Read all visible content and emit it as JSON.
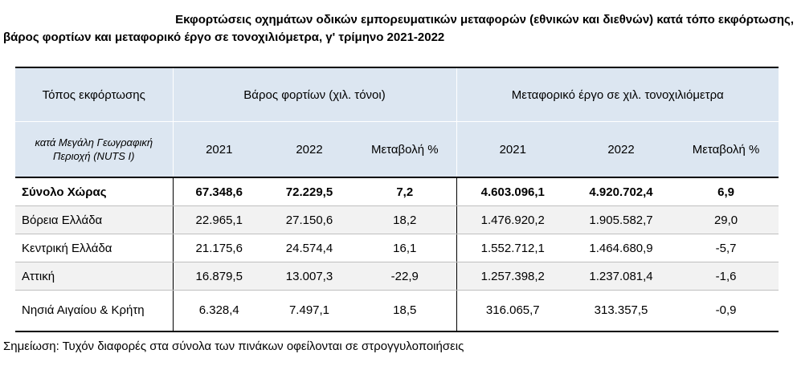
{
  "title": {
    "line1": "Εκφορτώσεις οχημάτων οδικών εμπορευματικών μεταφορών (εθνικών και διεθνών) κατά τόπο εκφόρτωσης,",
    "line2": "βάρος φορτίων και μεταφορικό έργο σε τονοχιλιόμετρα, γ' τρίμηνο 2021-2022"
  },
  "table": {
    "header": {
      "col1": "Τόπος εκφόρτωσης",
      "group_weight": "Βάρος φορτίων (χιλ. τόνοι)",
      "group_work": "Μεταφορικό έργο σε χιλ. τονοχιλιόμετρα",
      "region_label": "κατά Μεγάλη Γεωγραφική Περιοχή (NUTS I)",
      "y2021": "2021",
      "y2022": "2022",
      "change": "Μεταβολή %"
    },
    "rows": [
      {
        "name": "Σύνολο Χώρας",
        "w2021": "67.348,6",
        "w2022": "72.229,5",
        "wchg": "7,2",
        "t2021": "4.603.096,1",
        "t2022": "4.920.702,4",
        "tchg": "6,9"
      },
      {
        "name": "Βόρεια Ελλάδα",
        "w2021": "22.965,1",
        "w2022": "27.150,6",
        "wchg": "18,2",
        "t2021": "1.476.920,2",
        "t2022": "1.905.582,7",
        "tchg": "29,0"
      },
      {
        "name": "Κεντρική Ελλάδα",
        "w2021": "21.175,6",
        "w2022": "24.574,4",
        "wchg": "16,1",
        "t2021": "1.552.712,1",
        "t2022": "1.464.680,9",
        "tchg": "-5,7"
      },
      {
        "name": "Αττική",
        "w2021": "16.879,5",
        "w2022": "13.007,3",
        "wchg": "-22,9",
        "t2021": "1.257.398,2",
        "t2022": "1.237.081,4",
        "tchg": "-1,6"
      },
      {
        "name": "Νησιά Αιγαίου & Κρήτη",
        "w2021": "6.328,4",
        "w2022": "7.497,1",
        "wchg": "18,5",
        "t2021": "316.065,7",
        "t2022": "313.357,5",
        "tchg": "-0,9"
      }
    ]
  },
  "note": "Σημείωση: Τυχόν διαφορές στα σύνολα των πινάκων οφείλονται σε στρογγυλοποιήσεις"
}
